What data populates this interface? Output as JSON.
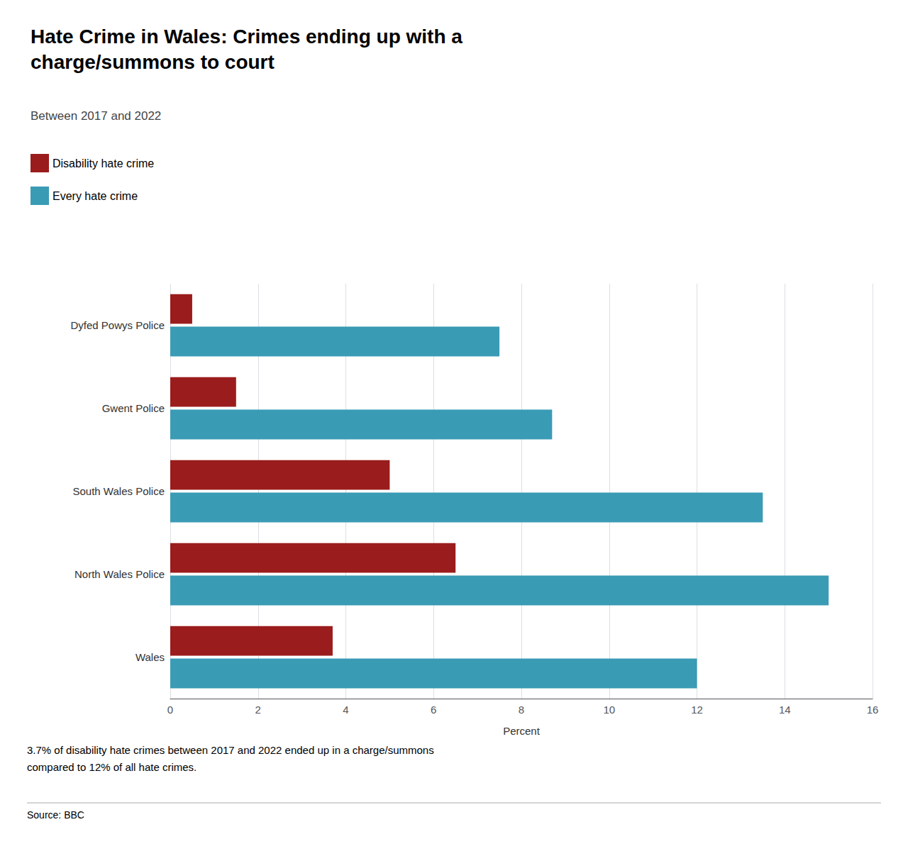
{
  "chart_data": {
    "type": "bar",
    "orientation": "horizontal",
    "title": "Hate Crime in Wales: Crimes ending up with a\ncharge/summons to court",
    "subtitle": "Between 2017 and 2022",
    "categories": [
      "Wales",
      "North Wales Police",
      "South Wales Police",
      "Gwent Police",
      "Dyfed Powys Police"
    ],
    "series": [
      {
        "name": "Disability hate crime",
        "color": "#9B1C1C",
        "values": [
          3.7,
          6.5,
          5.0,
          1.5,
          0.5
        ]
      },
      {
        "name": "Every hate crime",
        "color": "#3A9BB5",
        "values": [
          12.0,
          15.0,
          13.5,
          8.7,
          7.5
        ]
      }
    ],
    "xlim": [
      0,
      16
    ],
    "xticks": [
      0,
      2,
      4,
      6,
      8,
      10,
      12,
      14,
      16
    ],
    "xlabel": "Percent",
    "grid": true,
    "legend": "upper left",
    "annotation": "3.7% of disability hate crimes between 2017 and 2022 ended up in a charge/summons\ncompared to 12% of all hate crimes.",
    "source": "Source: BBC"
  }
}
